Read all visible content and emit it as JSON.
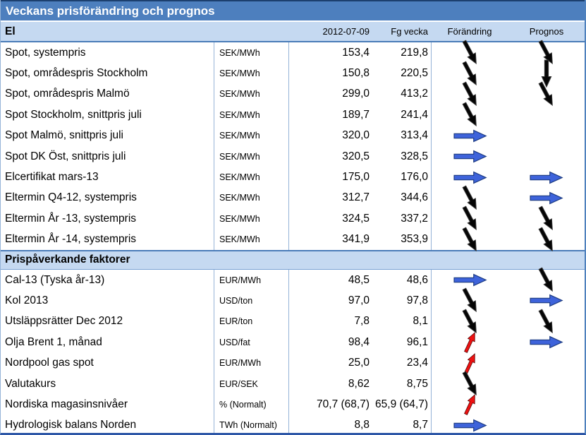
{
  "title": "Veckans prisförändring och prognos",
  "header": {
    "section_label": "El",
    "date": "2012-07-09",
    "prev_week": "Fg vecka",
    "change": "Förändring",
    "forecast": "Prognos"
  },
  "section2_label": "Prispåverkande faktorer",
  "colors": {
    "title_bg": "#4d7fbe",
    "header_bg": "#c5d9f1",
    "arrow_blue": "#3e63da",
    "arrow_blue_stroke": "#1b3a80",
    "arrow_red": "#ee1111",
    "arrow_red_stroke": "#550808",
    "arrow_black": "#050505",
    "arrow_black_stroke": "#3a3a3a",
    "border_light": "#95b3d7",
    "border_dark": "#2e57a7"
  },
  "el_rows": [
    {
      "name": "Spot, systempris",
      "unit": "SEK/MWh",
      "current": "153,4",
      "previous": "219,8",
      "change": "black-down-right",
      "forecast": "black-down-right"
    },
    {
      "name": "Spot, områdespris Stockholm",
      "unit": "SEK/MWh",
      "current": "150,8",
      "previous": "220,5",
      "change": "black-down-right",
      "forecast": "black-down"
    },
    {
      "name": "Spot, områdespris Malmö",
      "unit": "SEK/MWh",
      "current": "299,0",
      "previous": "413,2",
      "change": "black-down-right",
      "forecast": "black-down-right"
    },
    {
      "name": "Spot Stockholm, snittpris juli",
      "unit": "SEK/MWh",
      "current": "189,7",
      "previous": "241,4",
      "change": "black-down-right",
      "forecast": ""
    },
    {
      "name": "Spot Malmö, snittpris juli",
      "unit": "SEK/MWh",
      "current": "320,0",
      "previous": "313,4",
      "change": "blue-right",
      "forecast": ""
    },
    {
      "name": "Spot DK Öst, snittpris juli",
      "unit": "SEK/MWh",
      "current": "320,5",
      "previous": "328,5",
      "change": "blue-right",
      "forecast": ""
    },
    {
      "name": "Elcertifikat mars-13",
      "unit": "SEK/MWh",
      "current": "175,0",
      "previous": "176,0",
      "change": "blue-right",
      "forecast": "blue-right"
    },
    {
      "name": "Eltermin Q4-12, systempris",
      "unit": "SEK/MWh",
      "current": "312,7",
      "previous": "344,6",
      "change": "black-down-right",
      "forecast": "blue-right"
    },
    {
      "name": "Eltermin År -13, systempris",
      "unit": "SEK/MWh",
      "current": "324,5",
      "previous": "337,2",
      "change": "black-down-right",
      "forecast": "black-down-right"
    },
    {
      "name": "Eltermin År -14, systempris",
      "unit": "SEK/MWh",
      "current": "341,9",
      "previous": "353,9",
      "change": "black-down-right",
      "forecast": "black-down-right"
    }
  ],
  "factor_rows": [
    {
      "name": "Cal-13 (Tyska år-13)",
      "unit": "EUR/MWh",
      "current": "48,5",
      "previous": "48,6",
      "change": "blue-right",
      "forecast": "black-down-right"
    },
    {
      "name": "Kol 2013",
      "unit": "USD/ton",
      "current": "97,0",
      "previous": "97,8",
      "change": "black-down-right",
      "forecast": "blue-right"
    },
    {
      "name": "Utsläppsrätter Dec 2012",
      "unit": "EUR/ton",
      "current": "7,8",
      "previous": "8,1",
      "change": "black-down-right",
      "forecast": "black-down-right"
    },
    {
      "name": "Olja Brent 1, månad",
      "unit": "USD/fat",
      "current": "98,4",
      "previous": "96,1",
      "change": "red-up-right",
      "forecast": "blue-right"
    },
    {
      "name": "Nordpool gas spot",
      "unit": "EUR/MWh",
      "current": "25,0",
      "previous": "23,4",
      "change": "red-up-right",
      "forecast": ""
    },
    {
      "name": "Valutakurs",
      "unit": "EUR/SEK",
      "current": "8,62",
      "previous": "8,75",
      "change": "black-down-right",
      "forecast": ""
    },
    {
      "name": "Nordiska magasinsnivåer",
      "unit": "% (Normalt)",
      "current": "70,7 (68,7)",
      "previous": "65,9 (64,7)",
      "change": "red-up-right",
      "forecast": ""
    },
    {
      "name": "Hydrologisk balans Norden",
      "unit": "TWh (Normalt)",
      "current": "8,8",
      "previous": "8,7",
      "change": "blue-right",
      "forecast": ""
    }
  ]
}
